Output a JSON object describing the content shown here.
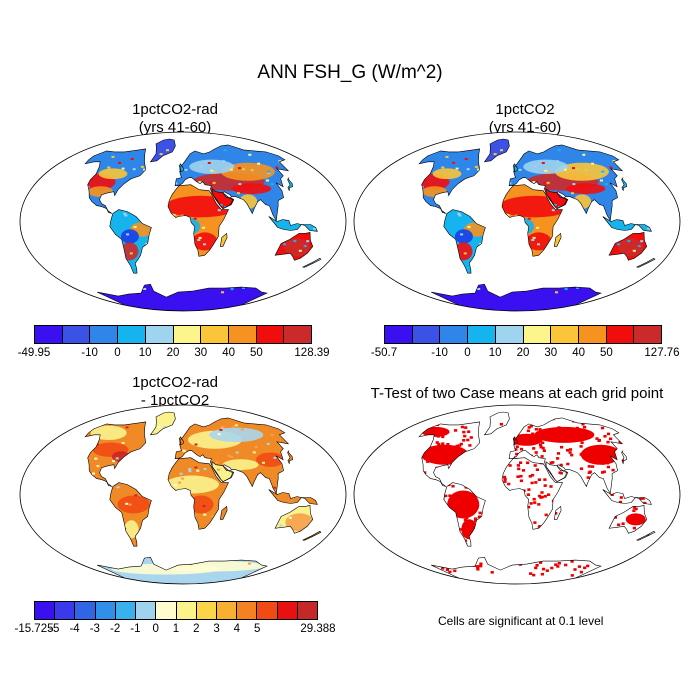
{
  "figure": {
    "title": "ANN FSH_G (W/m^2)",
    "note": "Cells are significant at 0.1 level"
  },
  "panels": [
    {
      "id": "rad",
      "title_line1": "1pctCO2-rad",
      "title_line2": "(yrs 41-60)",
      "colorbar": {
        "colors": [
          "#3a10f0",
          "#3c52e6",
          "#2f86e8",
          "#16b4ee",
          "#9fd3ee",
          "#fbf58c",
          "#fbc53a",
          "#f6921f",
          "#f20d0d",
          "#cc2a2a"
        ],
        "labels": [
          "-49.95",
          "",
          "-10",
          "0",
          "10",
          "20",
          "30",
          "40",
          "50",
          "",
          "128.39"
        ]
      }
    },
    {
      "id": "ctl",
      "title_line1": "1pctCO2",
      "title_line2": "(yrs 41-60)",
      "colorbar": {
        "colors": [
          "#3a10f0",
          "#3c52e6",
          "#2f86e8",
          "#16b4ee",
          "#9fd3ee",
          "#fbf58c",
          "#fbc53a",
          "#f6921f",
          "#f20d0d",
          "#cc2a2a"
        ],
        "labels": [
          "-50.7",
          "",
          "-10",
          "0",
          "10",
          "20",
          "30",
          "40",
          "50",
          "",
          "127.76"
        ]
      }
    },
    {
      "id": "diff",
      "title_line1": "1pctCO2-rad",
      "title_line2": "- 1pctCO2",
      "colorbar": {
        "colors": [
          "#3a10f0",
          "#3a3aec",
          "#3066e6",
          "#2f8fe9",
          "#39b1ee",
          "#9fd3ee",
          "#fffdd0",
          "#fbf38a",
          "#fbd448",
          "#f8b031",
          "#f58220",
          "#f24a14",
          "#e81010",
          "#c42828"
        ],
        "labels": [
          "-15.725",
          "-5",
          "-4",
          "-3",
          "-2",
          "-1",
          "0",
          "1",
          "2",
          "3",
          "4",
          "5",
          "",
          "",
          "29.388"
        ]
      }
    },
    {
      "id": "ttest",
      "title_line1": "T-Test of two Case means at each grid point",
      "title_line2": ""
    }
  ],
  "map_colors": {
    "outline": "#000000",
    "sig": "#ee0000",
    "diff_land": "#f08a26",
    "diff_hot": "#cc2525",
    "diff_cool": "#fbf28e",
    "diff_ice": "#a9d6ee"
  }
}
